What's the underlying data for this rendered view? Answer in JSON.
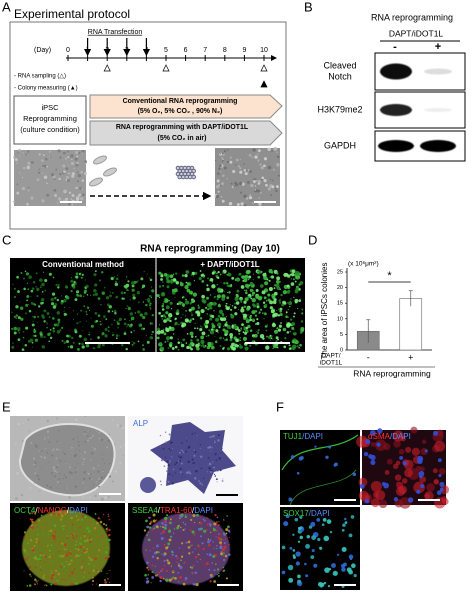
{
  "panel_a": {
    "letter": "A",
    "title": "Experimental protocol",
    "day_label": "(Day)",
    "days": [
      "0",
      "1",
      "2",
      "3",
      "4",
      "5",
      "6",
      "7",
      "8",
      "9",
      "10"
    ],
    "transfection": "RNA Transfection",
    "legend": [
      "- RNA sampling (△)",
      "- Colony measuring (▲)"
    ],
    "culture": [
      "iPSC",
      "Reprogramming",
      "(culture condition)"
    ],
    "conventional": [
      "Conventional RNA reprogramming",
      "(5% O₂, 5% CO₂ , 90% N₂)"
    ],
    "dapt": [
      "RNA reprogramming with DAPT/iDOT1L",
      "(5% CO₂ in air)"
    ]
  },
  "panel_b": {
    "letter": "B",
    "title": "RNA reprogramming",
    "treatment": "DAPT/iDOT1L",
    "lanes": [
      "-",
      "+"
    ],
    "rows": [
      [
        "Cleaved",
        "Notch"
      ],
      [
        "H3K79me2"
      ],
      [
        "GAPDH"
      ]
    ]
  },
  "panel_c": {
    "letter": "C",
    "title": "RNA reprogramming (Day 10)",
    "columns": [
      "Conventional method",
      "+ DAPT/iDOT1L"
    ]
  },
  "chart_data": {
    "type": "bar",
    "letter": "D",
    "unit": "(x 10⁶μm²)",
    "y_label": "The area of iPSCs colonies",
    "row_label": [
      "DAPT/",
      "iDOT1L"
    ],
    "x_label": "RNA reprogramming",
    "categories": [
      "-",
      "+"
    ],
    "values": [
      6,
      16.5
    ],
    "errors": [
      3.7,
      2.5
    ],
    "colors": [
      "#8a8a8a",
      "#ffffff"
    ],
    "ylim": [
      0,
      25
    ],
    "yticks": [
      0,
      5,
      10,
      15,
      20,
      25
    ],
    "significance": "*"
  },
  "panel_e": {
    "letter": "E",
    "alp": "ALP",
    "oct4": [
      "OCT4",
      "/",
      "NANOG",
      "/",
      "DAPI"
    ],
    "ssea4": [
      "SSEA4",
      "/",
      "TRA1-60",
      "/",
      "DAPI"
    ]
  },
  "panel_f": {
    "letter": "F",
    "tuj1": [
      "TUJ1",
      "/DAPI"
    ],
    "sma": [
      "αSMA",
      "/DAPI"
    ],
    "sox17": [
      "SOX17",
      "/DAPI"
    ]
  }
}
